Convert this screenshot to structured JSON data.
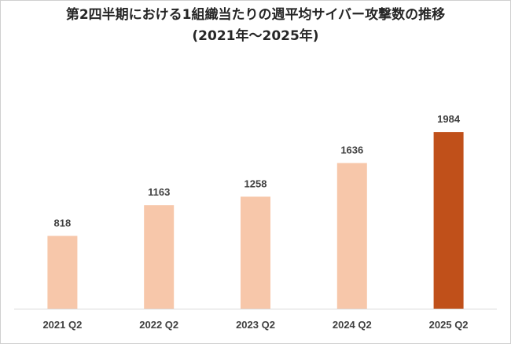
{
  "chart_data": {
    "type": "bar",
    "title": "第2四半期における1組織当たりの週平均サイバー攻撃数の推移",
    "subtitle": "(2021年〜2025年)",
    "categories": [
      "2021 Q2",
      "2022 Q2",
      "2023 Q2",
      "2024 Q2",
      "2025 Q2"
    ],
    "values": [
      818,
      1163,
      1258,
      1636,
      1984
    ],
    "data_labels": [
      "818",
      "1163",
      "1258",
      "1636",
      "1984"
    ],
    "ylim": [
      0,
      2400
    ],
    "grid": false,
    "legend": "none",
    "xlabel": "",
    "ylabel": "",
    "colors": {
      "bar": "#f7c7aa",
      "highlight_bar": "#c0501a",
      "axis": "#d9d9d9",
      "text": "#404040"
    },
    "highlight_index": 4
  }
}
